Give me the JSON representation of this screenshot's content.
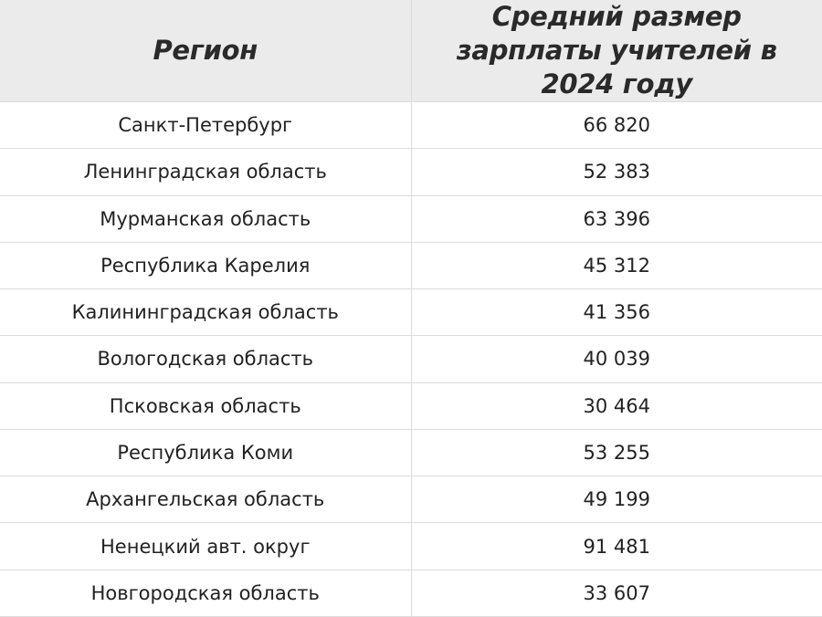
{
  "table": {
    "headers": [
      "Регион",
      "Средний размер зарплаты учителей в 2024 году"
    ],
    "rows": [
      {
        "region": "Санкт-Петербург",
        "salary": "66 820"
      },
      {
        "region": "Ленинградская область",
        "salary": "52 383"
      },
      {
        "region": "Мурманская область",
        "salary": "63 396"
      },
      {
        "region": "Республика Карелия",
        "salary": "45 312"
      },
      {
        "region": "Калининградская область",
        "salary": "41 356"
      },
      {
        "region": "Вологодская область",
        "salary": "40 039"
      },
      {
        "region": "Псковская область",
        "salary": "30 464"
      },
      {
        "region": "Республика Коми",
        "salary": "53 255"
      },
      {
        "region": "Архангельская область",
        "salary": "49 199"
      },
      {
        "region": "Ненецкий авт. округ",
        "salary": "91 481"
      },
      {
        "region": "Новгородская область",
        "salary": "33 607"
      }
    ]
  }
}
